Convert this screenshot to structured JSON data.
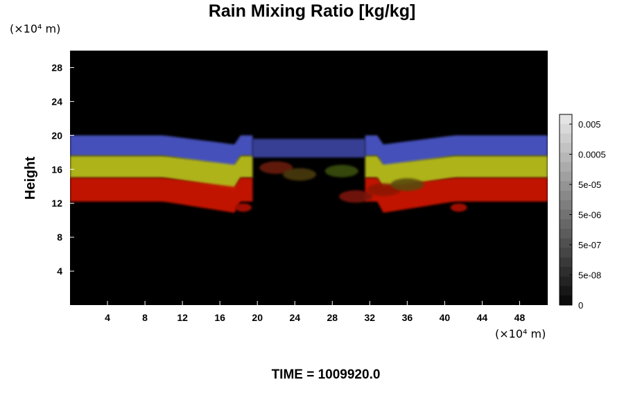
{
  "chart_data": {
    "type": "heatmap",
    "title": "Rain Mixing Ratio [kg/kg]",
    "ylabel": "Height",
    "x_unit": "(×10⁴ m)",
    "y_unit": "(×10⁴ m)",
    "xlim": [
      0,
      51
    ],
    "ylim": [
      0,
      30
    ],
    "x_ticks": [
      4,
      8,
      12,
      16,
      20,
      24,
      28,
      32,
      36,
      40,
      44,
      48
    ],
    "y_ticks": [
      4,
      8,
      12,
      16,
      20,
      24,
      28
    ],
    "colorbar": {
      "labels": [
        "0.005",
        "0.0005",
        "5e-05",
        "5e-06",
        "5e-07",
        "5e-08",
        "0"
      ],
      "levels": 20,
      "scale": "grayscale"
    },
    "field_layers": [
      {
        "name": "blue top band",
        "color": "#4a55c4",
        "y_top": 20,
        "y_bottom": 17.6
      },
      {
        "name": "yellow band",
        "color": "#b8bd1c",
        "y_top": 17.6,
        "y_bottom": 15
      },
      {
        "name": "red bottom band",
        "color": "#cc1205",
        "y_top": 15,
        "y_bottom": 12.2
      }
    ],
    "background": "#000000",
    "time_label": "TIME = 1009920.0"
  }
}
